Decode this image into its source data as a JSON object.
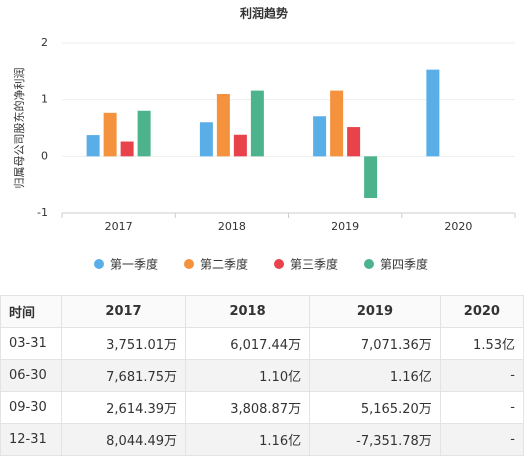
{
  "chart_data": {
    "type": "bar",
    "title": "利润趋势",
    "y_label": "归属母公司股东的净利润",
    "categories": [
      "2017",
      "2018",
      "2019",
      "2020"
    ],
    "series": [
      {
        "name": "第一季度",
        "color": "#5aaee8",
        "values": [
          0.3751,
          0.6017,
          0.7071,
          1.53
        ]
      },
      {
        "name": "第二季度",
        "color": "#f5923e",
        "values": [
          0.7682,
          1.1,
          1.16,
          null
        ]
      },
      {
        "name": "第三季度",
        "color": "#e8434b",
        "values": [
          0.2614,
          0.3809,
          0.5165,
          null
        ]
      },
      {
        "name": "第四季度",
        "color": "#4db38c",
        "values": [
          0.8044,
          1.16,
          -0.7352,
          null
        ]
      }
    ],
    "ylim": [
      -1,
      2
    ],
    "yticks": [
      -1,
      0,
      1,
      2
    ],
    "grid": true
  },
  "table": {
    "header": [
      "时间",
      "2017",
      "2018",
      "2019",
      "2020"
    ],
    "rows": [
      [
        "03-31",
        "3,751.01万",
        "6,017.44万",
        "7,071.36万",
        "1.53亿"
      ],
      [
        "06-30",
        "7,681.75万",
        "1.10亿",
        "1.16亿",
        "-"
      ],
      [
        "09-30",
        "2,614.39万",
        "3,808.87万",
        "5,165.20万",
        "-"
      ],
      [
        "12-31",
        "8,044.49万",
        "1.16亿",
        "-7,351.78万",
        "-"
      ]
    ]
  }
}
